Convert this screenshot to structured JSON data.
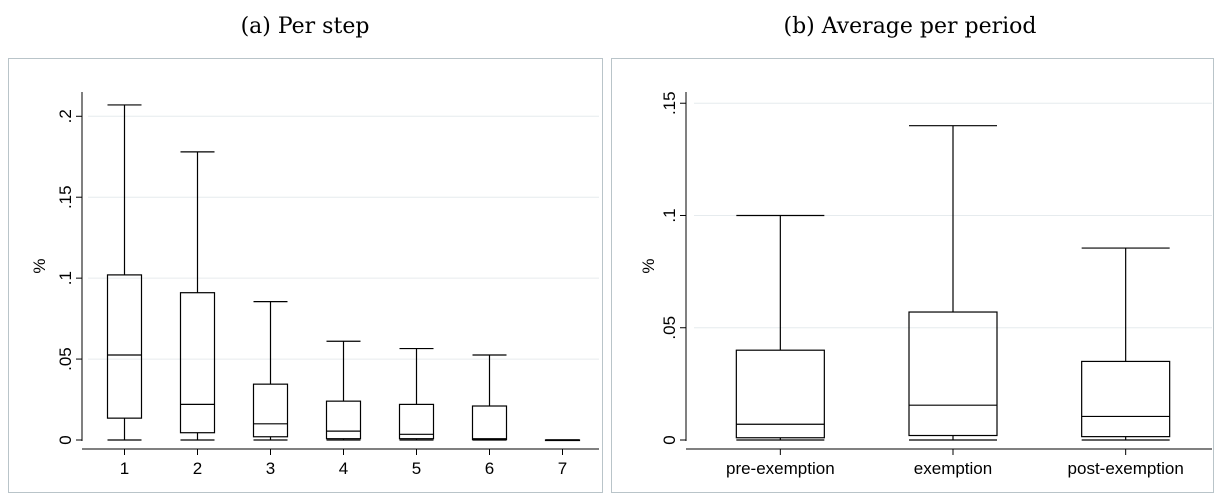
{
  "panels": {
    "a": {
      "title": "(a) Per step"
    },
    "b": {
      "title": "(b) Average per period"
    }
  },
  "chart_data": [
    {
      "type": "box",
      "title": "(a) Per step",
      "ylabel": "%",
      "xlabel": "",
      "ylim": [
        0,
        0.215
      ],
      "yticks": [
        0,
        0.05,
        0.1,
        0.15,
        0.2
      ],
      "ytick_labels": [
        "0",
        ".05",
        ".1",
        ".15",
        ".2"
      ],
      "grid": true,
      "categories": [
        "1",
        "2",
        "3",
        "4",
        "5",
        "6",
        "7"
      ],
      "boxes": [
        {
          "min": 0,
          "q1": 0.0135,
          "median": 0.0525,
          "q3": 0.102,
          "max": 0.207
        },
        {
          "min": 0,
          "q1": 0.0045,
          "median": 0.022,
          "q3": 0.091,
          "max": 0.178
        },
        {
          "min": 0,
          "q1": 0.002,
          "median": 0.01,
          "q3": 0.0345,
          "max": 0.0855
        },
        {
          "min": 0,
          "q1": 0.0008,
          "median": 0.0055,
          "q3": 0.024,
          "max": 0.061
        },
        {
          "min": 0,
          "q1": 0.0008,
          "median": 0.0035,
          "q3": 0.022,
          "max": 0.0565
        },
        {
          "min": 0,
          "q1": 0.0003,
          "median": 0.0008,
          "q3": 0.021,
          "max": 0.0525
        },
        {
          "min": 0,
          "q1": 0,
          "median": 0,
          "q3": 0,
          "max": 0
        }
      ]
    },
    {
      "type": "box",
      "title": "(b) Average per period",
      "ylabel": "%",
      "xlabel": "",
      "ylim": [
        0,
        0.155
      ],
      "yticks": [
        0,
        0.05,
        0.1,
        0.15
      ],
      "ytick_labels": [
        "0",
        ".05",
        ".1",
        ".15"
      ],
      "grid": true,
      "categories": [
        "pre-exemption",
        "exemption",
        "post-exemption"
      ],
      "boxes": [
        {
          "min": 0,
          "q1": 0.001,
          "median": 0.007,
          "q3": 0.04,
          "max": 0.1
        },
        {
          "min": 0,
          "q1": 0.002,
          "median": 0.0155,
          "q3": 0.057,
          "max": 0.14
        },
        {
          "min": 0,
          "q1": 0.0015,
          "median": 0.0105,
          "q3": 0.035,
          "max": 0.0855
        }
      ]
    }
  ]
}
